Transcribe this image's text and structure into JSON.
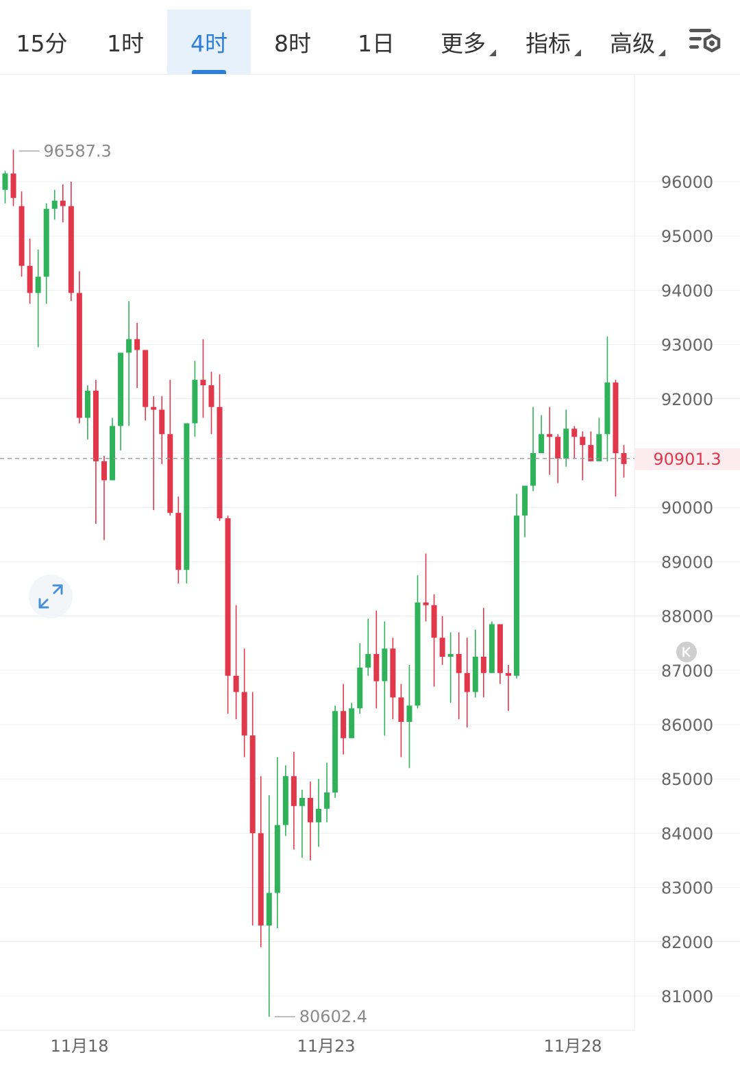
{
  "toolbar": {
    "tabs": [
      {
        "label": "15分",
        "active": false
      },
      {
        "label": "1时",
        "active": false
      },
      {
        "label": "4时",
        "active": true
      },
      {
        "label": "8时",
        "active": false
      },
      {
        "label": "1日",
        "active": false
      }
    ],
    "menus": [
      "更多",
      "指标",
      "高级"
    ],
    "settings_icon": "settings-filter-icon"
  },
  "colors": {
    "up": "#2fb25a",
    "down": "#e0374b",
    "grid": "#eceff2",
    "current_line": "#999999",
    "accent": "#2f7fd4"
  },
  "chart_data": {
    "type": "candlestick",
    "y_ticks": [
      96000,
      95000,
      94000,
      93000,
      92000,
      91000,
      90000,
      89000,
      88000,
      87000,
      86000,
      85000,
      84000,
      83000,
      82000,
      81000
    ],
    "x_labels": [
      "11月18",
      "11月23",
      "11月28"
    ],
    "max_label": "96587.3",
    "min_label": "80602.4",
    "current_price": 90901.3,
    "current_price_label": "90901.3",
    "candles": [
      [
        95850,
        96150,
        95600,
        96200
      ],
      [
        96150,
        95700,
        95550,
        96590
      ],
      [
        95550,
        94450,
        94250,
        95820
      ],
      [
        94450,
        93950,
        93750,
        94950
      ],
      [
        93950,
        94250,
        92950,
        94750
      ],
      [
        94250,
        95500,
        93750,
        95600
      ],
      [
        95500,
        95650,
        95300,
        95850
      ],
      [
        95650,
        95550,
        95250,
        95950
      ],
      [
        95550,
        93950,
        93800,
        96000
      ],
      [
        93950,
        91650,
        91550,
        94350
      ],
      [
        91650,
        92150,
        91250,
        92250
      ],
      [
        92150,
        90850,
        89700,
        92350
      ],
      [
        90850,
        90500,
        89400,
        90950
      ],
      [
        90500,
        91500,
        90500,
        91650
      ],
      [
        91500,
        92850,
        91050,
        92850
      ],
      [
        92850,
        93100,
        91500,
        93800
      ],
      [
        93100,
        92900,
        92200,
        93400
      ],
      [
        92900,
        91850,
        91600,
        92900
      ],
      [
        91850,
        91800,
        89950,
        92050
      ],
      [
        91800,
        91350,
        90800,
        92050
      ],
      [
        91350,
        89900,
        89850,
        92350
      ],
      [
        89900,
        88850,
        88600,
        90200
      ],
      [
        88850,
        91550,
        88600,
        91550
      ],
      [
        91550,
        92350,
        91300,
        92700
      ],
      [
        92350,
        92250,
        91650,
        93100
      ],
      [
        92250,
        91850,
        91350,
        92500
      ],
      [
        91850,
        89800,
        89750,
        92450
      ],
      [
        89800,
        86900,
        86200,
        89850
      ],
      [
        86900,
        86600,
        86100,
        88200
      ],
      [
        86600,
        85800,
        85400,
        87400
      ],
      [
        85800,
        84000,
        82300,
        86600
      ],
      [
        84000,
        82300,
        81900,
        85050
      ],
      [
        82300,
        82900,
        80620,
        84700
      ],
      [
        82900,
        84150,
        82250,
        85400
      ],
      [
        84150,
        85050,
        83950,
        85250
      ],
      [
        85050,
        84500,
        83700,
        85500
      ],
      [
        84500,
        84650,
        83550,
        84800
      ],
      [
        84650,
        84200,
        83500,
        84950
      ],
      [
        84200,
        84450,
        83750,
        85000
      ],
      [
        84450,
        84750,
        84200,
        85300
      ],
      [
        84750,
        86250,
        84650,
        86350
      ],
      [
        86250,
        85750,
        85450,
        86750
      ],
      [
        85750,
        86300,
        85800,
        86400
      ],
      [
        86300,
        87050,
        86200,
        87500
      ],
      [
        87050,
        87300,
        86900,
        87950
      ],
      [
        87300,
        86800,
        86300,
        88100
      ],
      [
        86800,
        87400,
        85800,
        87900
      ],
      [
        87400,
        86500,
        86100,
        87600
      ],
      [
        86500,
        86050,
        85400,
        86750
      ],
      [
        86050,
        86350,
        85200,
        87100
      ],
      [
        86350,
        88250,
        86300,
        88750
      ],
      [
        88250,
        88200,
        87900,
        89150
      ],
      [
        88200,
        87600,
        86700,
        88400
      ],
      [
        87600,
        87250,
        87100,
        88000
      ],
      [
        87250,
        87300,
        86400,
        87700
      ],
      [
        87300,
        86950,
        86100,
        87700
      ],
      [
        86950,
        86600,
        85950,
        87600
      ],
      [
        86600,
        87250,
        86500,
        87750
      ],
      [
        87250,
        86950,
        86500,
        88150
      ],
      [
        86950,
        87850,
        86950,
        87900
      ],
      [
        87850,
        86950,
        86750,
        87850
      ],
      [
        86950,
        86900,
        86250,
        87100
      ],
      [
        86900,
        89850,
        86850,
        90250
      ],
      [
        89850,
        90400,
        89450,
        90400
      ],
      [
        90400,
        91000,
        90300,
        91850
      ],
      [
        91000,
        91350,
        91000,
        91700
      ],
      [
        91350,
        91300,
        90600,
        91850
      ],
      [
        91300,
        90900,
        90450,
        91350
      ],
      [
        90900,
        91450,
        90750,
        91800
      ],
      [
        91450,
        91300,
        90900,
        91500
      ],
      [
        91300,
        91150,
        90500,
        91400
      ],
      [
        91150,
        90850,
        90850,
        91400
      ],
      [
        90850,
        91350,
        90850,
        91650
      ],
      [
        91350,
        92300,
        90850,
        93150
      ],
      [
        92300,
        91000,
        90200,
        92350
      ],
      [
        91000,
        90800,
        90550,
        91150
      ]
    ]
  }
}
